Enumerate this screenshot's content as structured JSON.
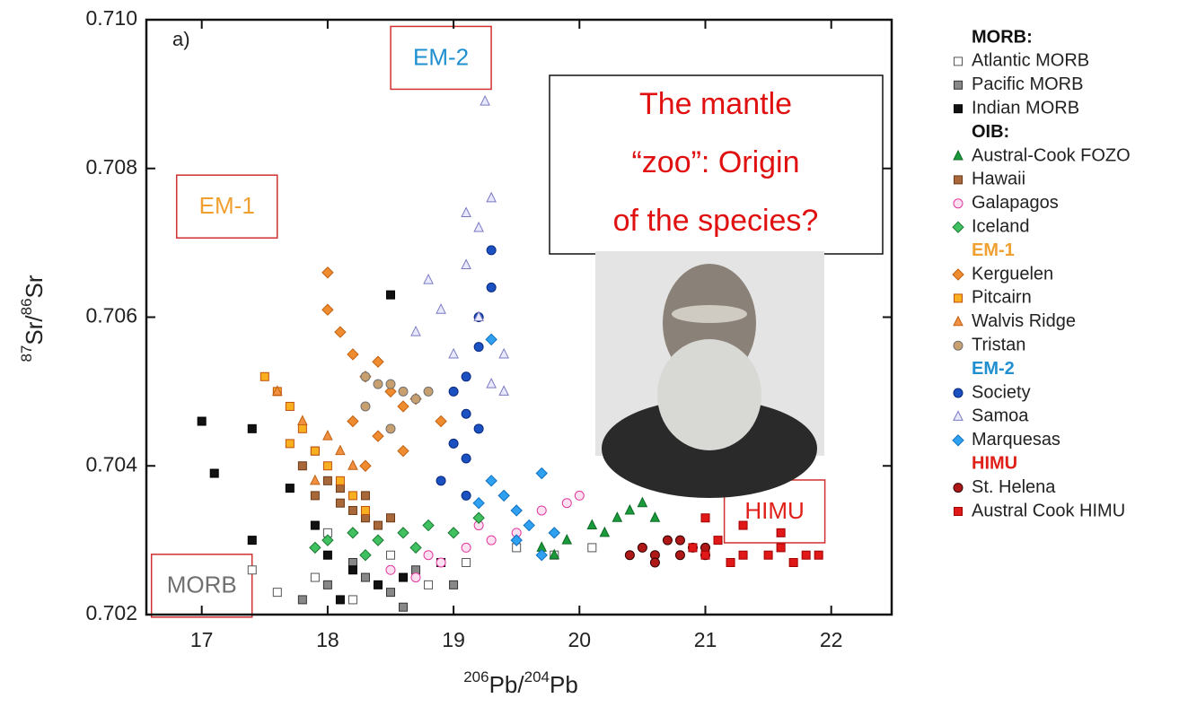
{
  "chart_data": {
    "type": "scatter",
    "panel_label": "a)",
    "xlabel_parts": [
      {
        "text": "206",
        "sup": true
      },
      {
        "text": "Pb/",
        "sup": false
      },
      {
        "text": "204",
        "sup": true
      },
      {
        "text": "Pb",
        "sup": false
      }
    ],
    "ylabel_parts": [
      {
        "text": "87",
        "sup": true
      },
      {
        "text": "Sr/",
        "sup": false
      },
      {
        "text": "86",
        "sup": true
      },
      {
        "text": "Sr",
        "sup": false
      }
    ],
    "xlim": [
      16.56,
      22.48
    ],
    "ylim": [
      0.702,
      0.71
    ],
    "xticks": [
      17,
      18,
      19,
      20,
      21,
      22
    ],
    "yticks": [
      {
        "value": 0.702,
        "label": "0.702"
      },
      {
        "value": 0.704,
        "label": "0.704"
      },
      {
        "value": 0.706,
        "label": "0.706"
      },
      {
        "value": 0.708,
        "label": "0.708"
      },
      {
        "value": 0.71,
        "label": "0.710"
      }
    ],
    "annotations": [
      {
        "text": "EM-2",
        "color": "#1f8fd0",
        "x": 18.9,
        "y": 0.7095
      },
      {
        "text": "EM-1",
        "color": "#f0a030",
        "x": 17.2,
        "y": 0.7075
      },
      {
        "text": "MORB",
        "color": "#707070",
        "x": 17.0,
        "y": 0.7024
      },
      {
        "text": "HIMU",
        "color": "#e02018",
        "x": 21.55,
        "y": 0.7034
      }
    ],
    "callout_lines": [
      "The mantle",
      "“zoo”:  Origin",
      "of the species?"
    ],
    "groups": [
      {
        "name": "MORB:",
        "color": "#111111",
        "series": [
          {
            "name": "Atlantic MORB",
            "color": "#ffffff",
            "edge": "#555555",
            "marker": "square",
            "x": [
              17.6,
              17.9,
              18.2,
              18.5,
              18.8,
              19.1,
              19.5,
              19.8,
              20.1,
              18.0,
              17.4
            ],
            "values": [
              0.7023,
              0.7025,
              0.7022,
              0.7028,
              0.7024,
              0.7027,
              0.7029,
              0.7028,
              0.7029,
              0.7031,
              0.7026
            ]
          },
          {
            "name": "Pacific MORB",
            "color": "#888888",
            "edge": "#333333",
            "marker": "square",
            "x": [
              17.8,
              18.0,
              18.3,
              18.5,
              18.7,
              19.0,
              18.2,
              18.6
            ],
            "values": [
              0.7022,
              0.7024,
              0.7025,
              0.7023,
              0.7026,
              0.7024,
              0.7027,
              0.7021
            ]
          },
          {
            "name": "Indian MORB",
            "color": "#111111",
            "edge": "#000000",
            "marker": "square",
            "x": [
              17.0,
              17.1,
              17.4,
              17.7,
              17.9,
              18.0,
              18.2,
              18.4,
              18.6,
              18.9,
              18.5,
              17.4,
              18.1
            ],
            "values": [
              0.7046,
              0.7039,
              0.7045,
              0.7037,
              0.7032,
              0.7028,
              0.7026,
              0.7024,
              0.7025,
              0.7027,
              0.7063,
              0.703,
              0.7022
            ]
          }
        ]
      },
      {
        "name": "OIB:",
        "color": "#111111",
        "series": [
          {
            "name": "Austral-Cook FOZO",
            "color": "#1a9a3a",
            "edge": "#0d6a25",
            "marker": "triangle",
            "x": [
              19.7,
              19.9,
              20.1,
              20.3,
              20.4,
              20.5,
              20.6,
              19.8,
              20.2
            ],
            "values": [
              0.7029,
              0.703,
              0.7032,
              0.7033,
              0.7034,
              0.7035,
              0.7033,
              0.7028,
              0.7031
            ]
          },
          {
            "name": "Hawaii",
            "color": "#a8683a",
            "edge": "#6a3a18",
            "marker": "square",
            "x": [
              17.8,
              17.9,
              18.0,
              18.1,
              18.2,
              18.3,
              18.4,
              18.5,
              17.9,
              18.1,
              18.3
            ],
            "values": [
              0.704,
              0.7036,
              0.7038,
              0.7035,
              0.7034,
              0.7033,
              0.7032,
              0.7033,
              0.7042,
              0.7037,
              0.7036
            ]
          },
          {
            "name": "Galapagos",
            "color": "#ffe0f0",
            "edge": "#e03aa0",
            "marker": "circle",
            "x": [
              18.5,
              18.7,
              18.9,
              19.1,
              19.3,
              19.5,
              19.7,
              19.9,
              20.0,
              18.8,
              19.2
            ],
            "values": [
              0.7026,
              0.7025,
              0.7027,
              0.7029,
              0.703,
              0.7031,
              0.7034,
              0.7035,
              0.7036,
              0.7028,
              0.7032
            ]
          },
          {
            "name": "Iceland",
            "color": "#40c060",
            "edge": "#1a7a30",
            "marker": "diamond",
            "x": [
              17.9,
              18.0,
              18.2,
              18.4,
              18.6,
              18.8,
              19.0,
              19.2,
              18.3,
              18.7
            ],
            "values": [
              0.7029,
              0.703,
              0.7031,
              0.703,
              0.7031,
              0.7032,
              0.7031,
              0.7033,
              0.7028,
              0.7029
            ]
          }
        ]
      },
      {
        "name": "EM-1",
        "color": "#f0a030",
        "series": [
          {
            "name": "Kerguelen",
            "color": "#f08c30",
            "edge": "#c06010",
            "marker": "diamond",
            "x": [
              18.0,
              18.0,
              18.1,
              18.2,
              18.3,
              18.4,
              18.5,
              18.6,
              18.7,
              18.2,
              18.4,
              18.9,
              18.3,
              18.6
            ],
            "values": [
              0.7066,
              0.7061,
              0.7058,
              0.7055,
              0.7052,
              0.7054,
              0.705,
              0.7048,
              0.7049,
              0.7046,
              0.7044,
              0.7046,
              0.704,
              0.7042
            ]
          },
          {
            "name": "Pitcairn",
            "color": "#f8b020",
            "edge": "#c05010",
            "marker": "square",
            "x": [
              17.5,
              17.6,
              17.7,
              17.8,
              17.9,
              18.0,
              18.1,
              18.2,
              17.7,
              18.3
            ],
            "values": [
              0.7052,
              0.705,
              0.7048,
              0.7045,
              0.7042,
              0.704,
              0.7038,
              0.7036,
              0.7043,
              0.7034
            ]
          },
          {
            "name": "Walvis Ridge",
            "color": "#f09040",
            "edge": "#c06010",
            "marker": "triangle",
            "x": [
              17.6,
              17.8,
              18.0,
              18.2,
              17.9,
              18.1
            ],
            "values": [
              0.705,
              0.7046,
              0.7044,
              0.704,
              0.7038,
              0.7042
            ]
          },
          {
            "name": "Tristan",
            "color": "#c8a070",
            "edge": "#707070",
            "marker": "circle",
            "x": [
              18.3,
              18.4,
              18.5,
              18.6,
              18.7,
              18.8,
              18.5,
              18.3
            ],
            "values": [
              0.7052,
              0.7051,
              0.7051,
              0.705,
              0.7049,
              0.705,
              0.7045,
              0.7048
            ]
          }
        ]
      },
      {
        "name": "EM-2",
        "color": "#1f8fd0",
        "series": [
          {
            "name": "Society",
            "color": "#1a50c0",
            "edge": "#0a2a80",
            "marker": "circle",
            "x": [
              18.9,
              19.0,
              19.1,
              19.1,
              19.2,
              19.2,
              19.3,
              19.0,
              19.1,
              19.2,
              19.3,
              19.1
            ],
            "values": [
              0.7038,
              0.7043,
              0.7047,
              0.7052,
              0.7056,
              0.706,
              0.7064,
              0.705,
              0.7041,
              0.7045,
              0.7069,
              0.7036
            ]
          },
          {
            "name": "Samoa",
            "color": "#e8e8ff",
            "edge": "#7a7ac0",
            "marker": "triangle",
            "x": [
              18.7,
              18.8,
              18.9,
              19.0,
              19.1,
              19.2,
              19.3,
              19.4,
              19.2,
              19.3,
              19.1,
              19.4,
              19.25
            ],
            "values": [
              0.7058,
              0.7065,
              0.7061,
              0.7055,
              0.7067,
              0.7072,
              0.7076,
              0.7055,
              0.706,
              0.7051,
              0.7074,
              0.705,
              0.7089
            ]
          },
          {
            "name": "Marquesas",
            "color": "#30a0f0",
            "edge": "#1070c0",
            "marker": "diamond",
            "x": [
              19.2,
              19.3,
              19.4,
              19.5,
              19.6,
              19.7,
              19.8,
              19.3,
              19.5,
              19.7
            ],
            "values": [
              0.7035,
              0.7038,
              0.7036,
              0.7034,
              0.7032,
              0.7039,
              0.7031,
              0.7057,
              0.703,
              0.7028
            ]
          }
        ]
      },
      {
        "name": "HIMU",
        "color": "#e02018",
        "series": [
          {
            "name": "St. Helena",
            "color": "#b01818",
            "edge": "#300000",
            "marker": "circle",
            "x": [
              20.4,
              20.5,
              20.6,
              20.7,
              20.8,
              20.9,
              21.0,
              20.6,
              20.8,
              21.0
            ],
            "values": [
              0.7028,
              0.7029,
              0.7028,
              0.703,
              0.7028,
              0.7029,
              0.7028,
              0.7027,
              0.703,
              0.7029
            ]
          },
          {
            "name": "Austral Cook HIMU",
            "color": "#e01818",
            "edge": "#a00000",
            "marker": "square",
            "x": [
              20.9,
              21.0,
              21.1,
              21.2,
              21.3,
              21.5,
              21.6,
              21.7,
              21.8,
              21.9,
              21.3,
              21.6,
              21.0
            ],
            "values": [
              0.7029,
              0.7028,
              0.703,
              0.7027,
              0.7028,
              0.7028,
              0.7029,
              0.7027,
              0.7028,
              0.7028,
              0.7032,
              0.7031,
              0.7033
            ]
          }
        ]
      }
    ]
  }
}
